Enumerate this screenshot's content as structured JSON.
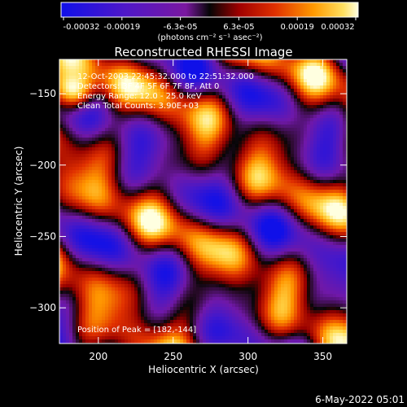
{
  "chart_data": {
    "type": "heatmap",
    "title": "Reconstructed RHESSI Image",
    "xlabel": "Heliocentric X (arcsec)",
    "ylabel": "Heliocentric Y (arcsec)",
    "xlim": [
      174,
      366
    ],
    "ylim": [
      -325,
      -126
    ],
    "x_ticks": [
      200,
      250,
      300,
      350
    ],
    "y_ticks": [
      -150,
      -200,
      -250,
      -300
    ],
    "colorbar": {
      "ticks": [
        "-0.00032",
        "-0.00019",
        "-6.3e-05",
        "6.3e-05",
        "0.00019",
        "0.00032"
      ],
      "unit_label": "(photons cm⁻² s⁻¹ asec⁻²)",
      "range": [
        -0.00032,
        0.00032
      ]
    },
    "annotations": [
      "12-Oct-2003 22:45:32.000 to 22:51:32.000",
      "Detectors: 3F 4F 5F 6F 7F 8F, Att 0",
      "Energy Range: 12.0 - 25.0 keV",
      "Clean    Total Counts: 3.90E+03"
    ],
    "peak_label": "Position of Peak = [182,-144]",
    "peak": {
      "x": 182,
      "y": -144
    },
    "timestamp": "6-May-2022 05:01"
  }
}
